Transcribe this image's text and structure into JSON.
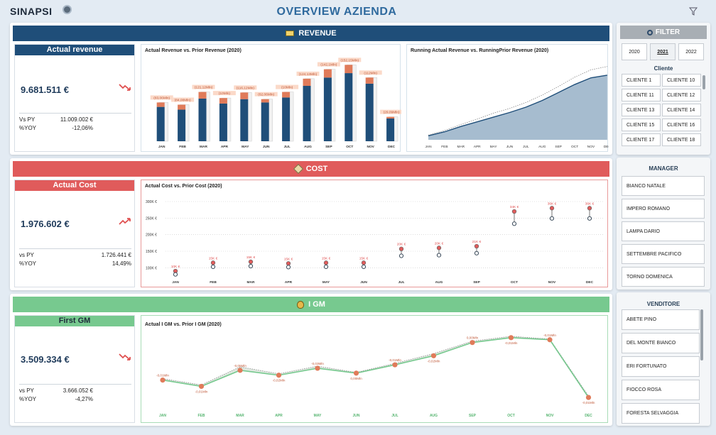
{
  "header": {
    "logo": "SINAPSI",
    "title": "OVERVIEW AZIENDA"
  },
  "colors": {
    "revenue": "#1f4e79",
    "cost": "#e05b5b",
    "gm": "#77c98f",
    "accent_orange": "#e07b5a"
  },
  "revenue": {
    "section_label": "REVENUE",
    "kpi": {
      "title": "Actual revenue",
      "value": "9.681.511 €",
      "vs_label": "Vs PY",
      "vs_value": "11.009.002 €",
      "yoy_label": "%YOY",
      "yoy_value": "-12,06%"
    }
  },
  "cost": {
    "section_label": "COST",
    "kpi": {
      "title": "Actual Cost",
      "value": "1.976.602 €",
      "vs_label": "vs PY",
      "vs_value": "1.726.441 €",
      "yoy_label": "%YOY",
      "yoy_value": "14,49%"
    }
  },
  "gm": {
    "section_label": "I GM",
    "kpi": {
      "title": "First GM",
      "value": "3.509.334 €",
      "vs_label": "vs PY",
      "vs_value": "3.666.052 €",
      "yoy_label": "%YOY",
      "yoy_value": "-4,27%"
    }
  },
  "chart_data": [
    {
      "type": "bar",
      "title": "Actual Revenue vs. Prior Revenue (2020)",
      "categories": [
        "JAN",
        "FEB",
        "MAR",
        "APR",
        "MAY",
        "JUN",
        "JUL",
        "AUG",
        "SEP",
        "OCT",
        "NOV",
        "DEC"
      ],
      "series": [
        {
          "name": "Actual",
          "values": [
            0.62,
            0.57,
            0.77,
            0.68,
            0.76,
            0.7,
            0.79,
            1.0,
            1.15,
            1.23,
            1.04,
            0.41
          ]
        },
        {
          "name": "Prior",
          "values": [
            0.7,
            0.66,
            0.89,
            0.78,
            0.88,
            0.76,
            0.89,
            1.13,
            1.3,
            1.38,
            1.15,
            0.44
          ]
        }
      ],
      "data_labels": [
        "(83,06Mln)",
        "(84,08Mln)",
        "(121,12Mln)",
        "(10Mln)",
        "(116,12Mln)",
        "(62,06Mln)",
        "(10Mln)",
        "(124,13Mln)",
        "(142,1Mln)",
        "(152,15Mln)",
        "(112Mln)",
        "(29,09Mln)"
      ]
    },
    {
      "type": "area",
      "title": "Running Actual Revenue vs. RunningPrior Revenue (2020)",
      "categories": [
        "JAN",
        "FEB",
        "MAR",
        "APR",
        "MAY",
        "JUN",
        "JUL",
        "AUG",
        "SEP",
        "OCT",
        "NOV",
        "DEC"
      ],
      "series": [
        {
          "name": "Running Actual",
          "values": [
            0.6,
            1.2,
            2.0,
            2.7,
            3.4,
            4.1,
            4.9,
            5.9,
            7.1,
            8.3,
            9.3,
            9.7
          ]
        },
        {
          "name": "Running Prior",
          "values": [
            0.7,
            1.4,
            2.3,
            3.1,
            4.0,
            4.7,
            5.6,
            6.7,
            8.0,
            9.4,
            10.5,
            11.0
          ]
        }
      ]
    },
    {
      "type": "scatter",
      "title": "Actual Cost vs. Prior Cost (2020)",
      "categories": [
        "JAN",
        "FEB",
        "MAR",
        "APR",
        "MAY",
        "JUN",
        "JUL",
        "AUG",
        "SEP",
        "OCT",
        "NOV",
        "DEC"
      ],
      "y_ticks": [
        "300K €",
        "250K €",
        "200K €",
        "150K €",
        "100K €"
      ],
      "ylim": [
        75000,
        300000
      ],
      "series": [
        {
          "name": "Actual",
          "values": [
            90000,
            115000,
            118000,
            113000,
            115000,
            115000,
            157000,
            160000,
            165000,
            270000,
            280000,
            280000
          ]
        },
        {
          "name": "Prior",
          "values": [
            80000,
            103000,
            105000,
            102000,
            103000,
            103000,
            136000,
            138000,
            144000,
            233000,
            249000,
            249000
          ]
        }
      ],
      "data_labels": [
        "10K €",
        "15K €",
        "15K €",
        "15K €",
        "15K €",
        "15K €",
        "20K €",
        "20K €",
        "21K €",
        "34K €",
        "36K €",
        "36K €"
      ]
    },
    {
      "type": "line",
      "title": "Actual I GM vs. Prior I GM (2020)",
      "categories": [
        "JAN",
        "FEB",
        "MAR",
        "APR",
        "MAY",
        "JUN",
        "JUL",
        "AUG",
        "SEP",
        "OCT",
        "NOV",
        "DEC"
      ],
      "series": [
        {
          "name": "Actual",
          "values": [
            0.3,
            0.21,
            0.44,
            0.37,
            0.47,
            0.4,
            0.52,
            0.65,
            0.84,
            0.91,
            0.88,
            0.05
          ]
        },
        {
          "name": "Prior",
          "values": [
            0.32,
            0.23,
            0.49,
            0.39,
            0.5,
            0.41,
            0.54,
            0.68,
            0.86,
            0.93,
            0.89,
            0.07
          ]
        }
      ],
      "data_labels": [
        "-0,01Mln",
        "-0,01Mln",
        "-0,05Mln",
        "-0,02Mln",
        "-0,03Mln",
        "0,00Mln",
        "-0,01Mln",
        "-0,02Mln",
        "0,00Mln",
        "-0,01Mln",
        "-0,01Mln",
        "-0,01Mln"
      ]
    }
  ],
  "filter": {
    "title": "FILTER",
    "years": [
      "2020",
      "2021",
      "2022"
    ],
    "selected_year": "2021",
    "clients_label": "Cliente",
    "clients": [
      "CLIENTE 1",
      "CLIENTE 10",
      "CLIENTE 11",
      "CLIENTE 12",
      "CLIENTE 13",
      "CLIENTE 14",
      "CLIENTE 15",
      "CLIENTE 16",
      "CLIENTE 17",
      "CLIENTE 18"
    ]
  },
  "manager": {
    "title": "MANAGER",
    "items": [
      "BIANCO NATALE",
      "IMPERO ROMANO",
      "LAMPA DARIO",
      "SETTEMBRE PACIFICO",
      "TORNO DOMENICA"
    ]
  },
  "venditore": {
    "title": "VENDITORE",
    "items": [
      "ABETE PINO",
      "DEL MONTE BIANCO",
      "ERI FORTUNATO",
      "FIOCCO ROSA",
      "FORESTA SELVAGGIA"
    ]
  }
}
